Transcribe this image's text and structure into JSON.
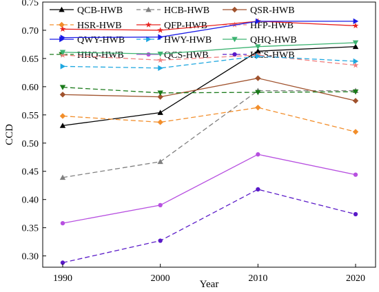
{
  "chart_data": {
    "type": "line",
    "xlabel": "Year",
    "ylabel": "CCD",
    "x": [
      1990,
      2000,
      2010,
      2020
    ],
    "ylim": [
      0.28,
      0.75
    ],
    "yticks": [
      "0.30",
      "0.35",
      "0.40",
      "0.45",
      "0.50",
      "0.55",
      "0.60",
      "0.65",
      "0.70",
      "0.75"
    ],
    "grid": false,
    "legend_position": "top",
    "series": [
      {
        "name": "QCB-HWB",
        "values": [
          0.531,
          0.554,
          0.663,
          0.671
        ],
        "color": "#000000",
        "dash": "solid",
        "marker": "triangle-up"
      },
      {
        "name": "HCB-HWB",
        "values": [
          0.439,
          0.467,
          0.593,
          0.593
        ],
        "color": "#808080",
        "dash": "dashed",
        "marker": "triangle-up"
      },
      {
        "name": "QSR-HWB",
        "values": [
          0.586,
          0.582,
          0.615,
          0.575
        ],
        "color": "#a0522d",
        "dash": "solid",
        "marker": "diamond"
      },
      {
        "name": "HSR-HWB",
        "values": [
          0.548,
          0.537,
          0.563,
          0.52
        ],
        "color": "#f28e2b",
        "dash": "dashed",
        "marker": "diamond"
      },
      {
        "name": "QFP-HWB",
        "values": [
          0.702,
          0.7,
          0.716,
          0.708
        ],
        "color": "#e8231f",
        "dash": "solid",
        "marker": "star"
      },
      {
        "name": "HFP-HWB",
        "values": [
          0.656,
          0.647,
          0.656,
          0.638
        ],
        "color": "#f08080",
        "dash": "dashed",
        "marker": "star"
      },
      {
        "name": "QWY-HWB",
        "values": [
          0.687,
          0.688,
          0.716,
          0.716
        ],
        "color": "#1a1ae6",
        "dash": "solid",
        "marker": "triangle-right"
      },
      {
        "name": "HWY-HWB",
        "values": [
          0.636,
          0.633,
          0.654,
          0.645
        ],
        "color": "#1ea7e0",
        "dash": "dashed",
        "marker": "triangle-right"
      },
      {
        "name": "QHQ-HWB",
        "values": [
          0.661,
          0.658,
          0.671,
          0.678
        ],
        "color": "#3cb371",
        "dash": "solid",
        "marker": "triangle-down"
      },
      {
        "name": "HHQ-HWB",
        "values": [
          0.599,
          0.589,
          0.59,
          0.591
        ],
        "color": "#1a7a1a",
        "dash": "dashed",
        "marker": "triangle-down"
      },
      {
        "name": "QCS-HWB",
        "values": [
          0.358,
          0.39,
          0.48,
          0.444
        ],
        "color": "#b74fe0",
        "dash": "solid",
        "marker": "circle"
      },
      {
        "name": "HCS-HWB",
        "values": [
          0.288,
          0.327,
          0.418,
          0.374
        ],
        "color": "#5a1ac8",
        "dash": "dashed",
        "marker": "circle"
      }
    ]
  }
}
